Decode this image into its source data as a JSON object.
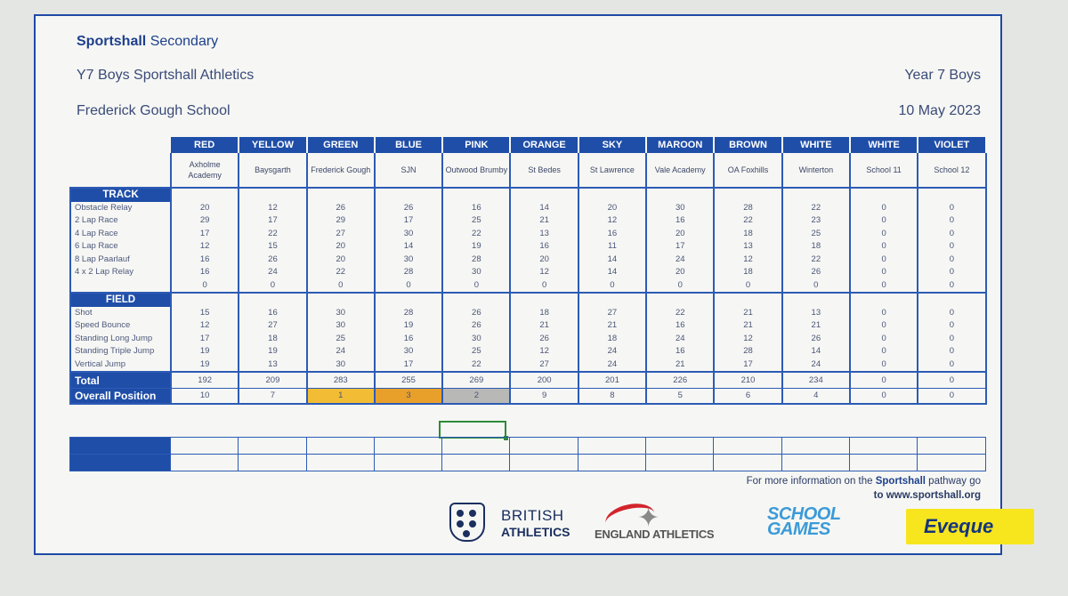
{
  "header": {
    "org_bold": "Sportshall",
    "org_rest": "Secondary",
    "event": "Y7 Boys Sportshall Athletics",
    "school": "Frederick Gough School",
    "category": "Year 7 Boys",
    "date": "10 May 2023"
  },
  "teams": [
    {
      "colour": "RED",
      "school": "Axholme Academy"
    },
    {
      "colour": "YELLOW",
      "school": "Baysgarth"
    },
    {
      "colour": "GREEN",
      "school": "Frederick Gough"
    },
    {
      "colour": "BLUE",
      "school": "SJN"
    },
    {
      "colour": "PINK",
      "school": "Outwood Brumby"
    },
    {
      "colour": "ORANGE",
      "school": "St Bedes"
    },
    {
      "colour": "SKY",
      "school": "St Lawrence"
    },
    {
      "colour": "MAROON",
      "school": "Vale Academy"
    },
    {
      "colour": "BROWN",
      "school": "OA Foxhills"
    },
    {
      "colour": "WHITE",
      "school": "Winterton"
    },
    {
      "colour": "WHITE",
      "school": "School 11"
    },
    {
      "colour": "VIOLET",
      "school": "School 12"
    }
  ],
  "sections": {
    "track": "TRACK",
    "field": "FIELD"
  },
  "track_events": [
    {
      "name": "Obstacle Relay",
      "scores": [
        "20",
        "12",
        "26",
        "26",
        "16",
        "14",
        "20",
        "30",
        "28",
        "22",
        "0",
        "0"
      ]
    },
    {
      "name": "2 Lap Race",
      "scores": [
        "29",
        "17",
        "29",
        "17",
        "25",
        "21",
        "12",
        "16",
        "22",
        "23",
        "0",
        "0"
      ]
    },
    {
      "name": "4 Lap Race",
      "scores": [
        "17",
        "22",
        "27",
        "30",
        "22",
        "13",
        "16",
        "20",
        "18",
        "25",
        "0",
        "0"
      ]
    },
    {
      "name": "6 Lap Race",
      "scores": [
        "12",
        "15",
        "20",
        "14",
        "19",
        "16",
        "11",
        "17",
        "13",
        "18",
        "0",
        "0"
      ]
    },
    {
      "name": "8 Lap Paarlauf",
      "scores": [
        "16",
        "26",
        "20",
        "30",
        "28",
        "20",
        "14",
        "24",
        "12",
        "22",
        "0",
        "0"
      ]
    },
    {
      "name": "4 x 2 Lap Relay",
      "scores": [
        "16",
        "24",
        "22",
        "28",
        "30",
        "12",
        "14",
        "20",
        "18",
        "26",
        "0",
        "0"
      ]
    },
    {
      "name": "",
      "scores": [
        "0",
        "0",
        "0",
        "0",
        "0",
        "0",
        "0",
        "0",
        "0",
        "0",
        "0",
        "0"
      ]
    }
  ],
  "field_events": [
    {
      "name": "Shot",
      "scores": [
        "15",
        "16",
        "30",
        "28",
        "26",
        "18",
        "27",
        "22",
        "21",
        "13",
        "0",
        "0"
      ]
    },
    {
      "name": "Speed Bounce",
      "scores": [
        "12",
        "27",
        "30",
        "19",
        "26",
        "21",
        "21",
        "16",
        "21",
        "21",
        "0",
        "0"
      ]
    },
    {
      "name": "Standing Long Jump",
      "scores": [
        "17",
        "18",
        "25",
        "16",
        "30",
        "26",
        "18",
        "24",
        "12",
        "26",
        "0",
        "0"
      ]
    },
    {
      "name": "Standing Triple Jump",
      "scores": [
        "19",
        "19",
        "24",
        "30",
        "25",
        "12",
        "24",
        "16",
        "28",
        "14",
        "0",
        "0"
      ]
    },
    {
      "name": "Vertical Jump",
      "scores": [
        "19",
        "13",
        "30",
        "17",
        "22",
        "27",
        "24",
        "21",
        "17",
        "24",
        "0",
        "0"
      ]
    }
  ],
  "total": {
    "label": "Total",
    "values": [
      "192",
      "209",
      "283",
      "255",
      "269",
      "200",
      "201",
      "226",
      "210",
      "234",
      "0",
      "0"
    ]
  },
  "position": {
    "label": "Overall Position",
    "values": [
      "10",
      "7",
      "1",
      "3",
      "2",
      "9",
      "8",
      "5",
      "6",
      "4",
      "0",
      "0"
    ]
  },
  "highlight_colors": {
    "first": "#f2bd34",
    "third": "#e8a02a",
    "second": "#b8b9b7",
    "accent": "#1f4ea8"
  },
  "footer": {
    "info_prefix": "For more information on the",
    "info_brand": "Sportshall",
    "info_suffix": "pathway go",
    "info_link": "to www.sportshall.org"
  },
  "logos": {
    "british_athletics_1": "BRITISH",
    "british_athletics_2": "ATHLETICS",
    "england_athletics": "ENGLAND ATHLETICS",
    "school_games_1": "SCHOOL",
    "school_games_2": "GAMES",
    "eveque": "Eveque"
  }
}
